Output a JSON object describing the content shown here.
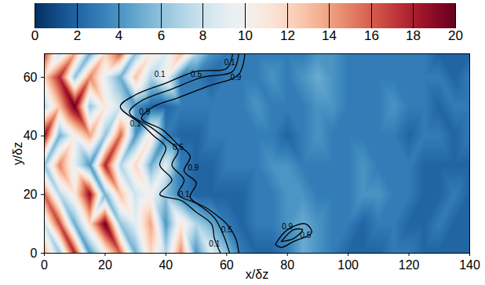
{
  "chart_data": {
    "type": "heatmap",
    "x_label": "x/δz",
    "y_label": "y/δz",
    "xlim": [
      0,
      140
    ],
    "ylim": [
      0,
      68
    ],
    "xticks": [
      0,
      20,
      40,
      60,
      80,
      100,
      120,
      140
    ],
    "yticks": [
      0,
      20,
      40,
      60
    ],
    "color": "RdBu",
    "colorbar": {
      "range": [
        0,
        20
      ],
      "ticks": [
        0,
        2,
        4,
        6,
        8,
        10,
        12,
        14,
        16,
        18,
        20
      ]
    },
    "x": [
      0,
      5,
      10,
      15,
      20,
      25,
      30,
      35,
      40,
      45,
      50,
      55,
      60,
      65,
      70,
      75,
      80,
      85,
      90,
      95,
      100,
      105,
      110,
      115,
      120,
      125,
      130,
      135,
      140
    ],
    "y": [
      0,
      10,
      20,
      30,
      40,
      50,
      60,
      68
    ],
    "cells": [
      [
        14,
        6,
        18,
        4,
        10,
        16,
        5,
        12,
        7,
        15,
        4,
        9,
        6,
        3,
        2,
        2,
        3,
        5,
        4,
        3,
        2,
        2,
        2,
        3,
        3,
        2,
        2,
        2,
        2
      ],
      [
        8,
        17,
        5,
        12,
        20,
        6,
        9,
        14,
        4,
        11,
        7,
        5,
        3,
        2,
        3,
        3,
        4,
        5,
        4,
        3,
        3,
        2,
        3,
        3,
        2,
        2,
        3,
        2,
        2
      ],
      [
        16,
        7,
        11,
        19,
        5,
        13,
        8,
        10,
        6,
        3,
        2,
        2,
        2,
        2,
        3,
        3,
        4,
        4,
        3,
        3,
        3,
        4,
        4,
        3,
        3,
        2,
        2,
        3,
        2
      ],
      [
        6,
        15,
        9,
        4,
        18,
        7,
        12,
        5,
        9,
        3,
        2,
        2,
        3,
        3,
        3,
        4,
        4,
        3,
        3,
        3,
        3,
        4,
        3,
        3,
        3,
        2,
        2,
        2,
        2
      ],
      [
        19,
        5,
        10,
        14,
        6,
        16,
        4,
        11,
        3,
        2,
        2,
        3,
        3,
        3,
        3,
        3,
        2,
        3,
        4,
        3,
        3,
        3,
        3,
        3,
        2,
        3,
        3,
        2,
        3
      ],
      [
        7,
        13,
        20,
        6,
        11,
        8,
        4,
        2,
        2,
        3,
        3,
        3,
        3,
        3,
        4,
        3,
        3,
        3,
        4,
        4,
        3,
        3,
        3,
        4,
        3,
        3,
        2,
        3,
        3
      ],
      [
        12,
        18,
        6,
        15,
        9,
        5,
        13,
        7,
        10,
        3,
        3,
        2,
        3,
        3,
        3,
        4,
        3,
        4,
        5,
        4,
        3,
        3,
        3,
        3,
        3,
        3,
        3,
        2,
        3
      ],
      [
        17,
        8,
        14,
        5,
        12,
        16,
        6,
        11,
        9,
        13,
        7,
        4,
        3,
        3,
        3,
        3,
        3,
        3,
        4,
        4,
        3,
        3,
        3,
        3,
        3,
        3,
        2,
        2,
        2
      ]
    ],
    "contours": [
      {
        "level": 0.1,
        "points": [
          [
            62,
            68
          ],
          [
            60,
            63
          ],
          [
            50,
            62
          ],
          [
            40,
            58
          ],
          [
            30,
            54
          ],
          [
            25,
            50
          ],
          [
            32,
            44
          ],
          [
            36,
            40
          ],
          [
            40,
            36
          ],
          [
            38,
            30
          ],
          [
            42,
            25
          ],
          [
            38,
            20
          ],
          [
            45,
            18
          ],
          [
            50,
            14
          ],
          [
            55,
            10
          ],
          [
            56,
            5
          ],
          [
            58,
            0
          ]
        ],
        "labels": [
          [
            61,
            65
          ],
          [
            38,
            61
          ],
          [
            30,
            44
          ],
          [
            46,
            20
          ],
          [
            56,
            3
          ]
        ]
      },
      {
        "level": 0.5,
        "points": [
          [
            64,
            68
          ],
          [
            62,
            62
          ],
          [
            52,
            60
          ],
          [
            42,
            56
          ],
          [
            32,
            52
          ],
          [
            28,
            48
          ],
          [
            35,
            43
          ],
          [
            40,
            39
          ],
          [
            44,
            35
          ],
          [
            42,
            30
          ],
          [
            46,
            25
          ],
          [
            44,
            20
          ],
          [
            50,
            17
          ],
          [
            56,
            12
          ],
          [
            59,
            6
          ],
          [
            61,
            0
          ]
        ],
        "labels": [
          [
            50,
            61
          ],
          [
            44,
            36
          ],
          [
            60,
            8
          ]
        ]
      },
      {
        "level": 0.9,
        "points": [
          [
            66,
            68
          ],
          [
            64,
            61
          ],
          [
            54,
            57
          ],
          [
            44,
            53
          ],
          [
            36,
            50
          ],
          [
            32,
            46
          ],
          [
            39,
            42
          ],
          [
            44,
            37
          ],
          [
            48,
            33
          ],
          [
            46,
            28
          ],
          [
            50,
            24
          ],
          [
            48,
            19
          ],
          [
            54,
            15
          ],
          [
            60,
            10
          ],
          [
            63,
            5
          ],
          [
            64,
            0
          ]
        ],
        "labels": [
          [
            63,
            60
          ],
          [
            33,
            48
          ],
          [
            49,
            29
          ]
        ]
      },
      {
        "level": 0.5,
        "points": [
          [
            76,
            3
          ],
          [
            80,
            8
          ],
          [
            86,
            10
          ],
          [
            88,
            7
          ],
          [
            82,
            4
          ],
          [
            78,
            2
          ],
          [
            76,
            3
          ]
        ],
        "labels": [
          [
            86,
            6
          ]
        ]
      },
      {
        "level": 0.9,
        "points": [
          [
            78,
            4
          ],
          [
            82,
            8
          ],
          [
            85,
            8
          ],
          [
            82,
            5
          ],
          [
            78,
            4
          ]
        ],
        "labels": [
          [
            80,
            9
          ]
        ]
      }
    ]
  }
}
